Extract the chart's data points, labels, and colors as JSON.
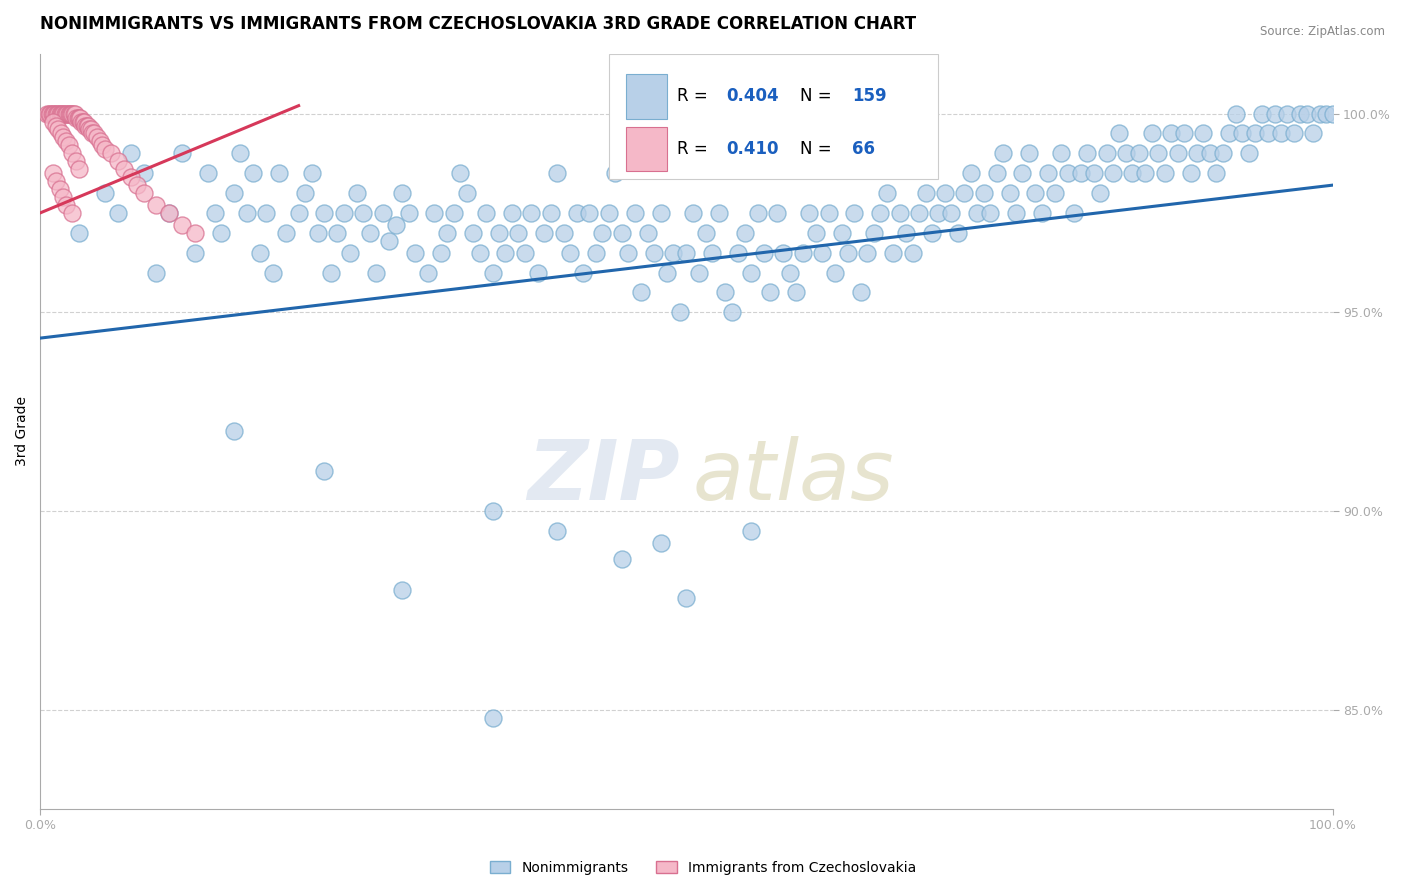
{
  "title": "NONIMMIGRANTS VS IMMIGRANTS FROM CZECHOSLOVAKIA 3RD GRADE CORRELATION CHART",
  "source": "Source: ZipAtlas.com",
  "ylabel": "3rd Grade",
  "xlabel": "",
  "xlim": [
    0.0,
    1.0
  ],
  "ylim": [
    0.825,
    1.015
  ],
  "yticks": [
    0.85,
    0.9,
    0.95,
    1.0
  ],
  "ytick_labels": [
    "85.0%",
    "90.0%",
    "95.0%",
    "100.0%"
  ],
  "R_nonimm": 0.404,
  "N_nonimm": 159,
  "R_imm": 0.41,
  "N_imm": 66,
  "scatter_blue_color": "#b8d0e8",
  "scatter_blue_edge": "#7aaed0",
  "scatter_pink_color": "#f5b8c8",
  "scatter_pink_edge": "#d87090",
  "line_blue_color": "#2166ac",
  "line_pink_color": "#d6385a",
  "legend_label_blue": "Nonimmigrants",
  "legend_label_pink": "Immigrants from Czechoslovakia",
  "title_fontsize": 12,
  "axis_label_fontsize": 10,
  "tick_fontsize": 9,
  "blue_line_x0": 0.0,
  "blue_line_y0": 0.9435,
  "blue_line_x1": 1.0,
  "blue_line_y1": 0.982,
  "pink_line_x0": 0.0,
  "pink_line_y0": 0.975,
  "pink_line_x1": 0.2,
  "pink_line_y1": 1.002,
  "blue_dots": [
    [
      0.03,
      0.97
    ],
    [
      0.05,
      0.98
    ],
    [
      0.06,
      0.975
    ],
    [
      0.07,
      0.99
    ],
    [
      0.08,
      0.985
    ],
    [
      0.09,
      0.96
    ],
    [
      0.1,
      0.975
    ],
    [
      0.11,
      0.99
    ],
    [
      0.12,
      0.965
    ],
    [
      0.13,
      0.985
    ],
    [
      0.135,
      0.975
    ],
    [
      0.14,
      0.97
    ],
    [
      0.15,
      0.98
    ],
    [
      0.155,
      0.99
    ],
    [
      0.16,
      0.975
    ],
    [
      0.165,
      0.985
    ],
    [
      0.17,
      0.965
    ],
    [
      0.175,
      0.975
    ],
    [
      0.18,
      0.96
    ],
    [
      0.185,
      0.985
    ],
    [
      0.19,
      0.97
    ],
    [
      0.2,
      0.975
    ],
    [
      0.205,
      0.98
    ],
    [
      0.21,
      0.985
    ],
    [
      0.215,
      0.97
    ],
    [
      0.22,
      0.975
    ],
    [
      0.225,
      0.96
    ],
    [
      0.23,
      0.97
    ],
    [
      0.235,
      0.975
    ],
    [
      0.24,
      0.965
    ],
    [
      0.245,
      0.98
    ],
    [
      0.25,
      0.975
    ],
    [
      0.255,
      0.97
    ],
    [
      0.26,
      0.96
    ],
    [
      0.265,
      0.975
    ],
    [
      0.27,
      0.968
    ],
    [
      0.275,
      0.972
    ],
    [
      0.28,
      0.98
    ],
    [
      0.285,
      0.975
    ],
    [
      0.29,
      0.965
    ],
    [
      0.3,
      0.96
    ],
    [
      0.305,
      0.975
    ],
    [
      0.31,
      0.965
    ],
    [
      0.315,
      0.97
    ],
    [
      0.32,
      0.975
    ],
    [
      0.325,
      0.985
    ],
    [
      0.33,
      0.98
    ],
    [
      0.335,
      0.97
    ],
    [
      0.34,
      0.965
    ],
    [
      0.345,
      0.975
    ],
    [
      0.35,
      0.96
    ],
    [
      0.355,
      0.97
    ],
    [
      0.36,
      0.965
    ],
    [
      0.365,
      0.975
    ],
    [
      0.37,
      0.97
    ],
    [
      0.375,
      0.965
    ],
    [
      0.38,
      0.975
    ],
    [
      0.385,
      0.96
    ],
    [
      0.39,
      0.97
    ],
    [
      0.395,
      0.975
    ],
    [
      0.4,
      0.985
    ],
    [
      0.405,
      0.97
    ],
    [
      0.41,
      0.965
    ],
    [
      0.415,
      0.975
    ],
    [
      0.42,
      0.96
    ],
    [
      0.425,
      0.975
    ],
    [
      0.43,
      0.965
    ],
    [
      0.435,
      0.97
    ],
    [
      0.44,
      0.975
    ],
    [
      0.445,
      0.985
    ],
    [
      0.45,
      0.97
    ],
    [
      0.455,
      0.965
    ],
    [
      0.46,
      0.975
    ],
    [
      0.465,
      0.955
    ],
    [
      0.47,
      0.97
    ],
    [
      0.475,
      0.965
    ],
    [
      0.48,
      0.975
    ],
    [
      0.485,
      0.96
    ],
    [
      0.49,
      0.965
    ],
    [
      0.495,
      0.95
    ],
    [
      0.5,
      0.965
    ],
    [
      0.505,
      0.975
    ],
    [
      0.51,
      0.96
    ],
    [
      0.515,
      0.97
    ],
    [
      0.52,
      0.965
    ],
    [
      0.525,
      0.975
    ],
    [
      0.53,
      0.955
    ],
    [
      0.535,
      0.95
    ],
    [
      0.54,
      0.965
    ],
    [
      0.545,
      0.97
    ],
    [
      0.55,
      0.96
    ],
    [
      0.555,
      0.975
    ],
    [
      0.56,
      0.965
    ],
    [
      0.565,
      0.955
    ],
    [
      0.57,
      0.975
    ],
    [
      0.575,
      0.965
    ],
    [
      0.58,
      0.96
    ],
    [
      0.585,
      0.955
    ],
    [
      0.59,
      0.965
    ],
    [
      0.595,
      0.975
    ],
    [
      0.6,
      0.97
    ],
    [
      0.605,
      0.965
    ],
    [
      0.61,
      0.975
    ],
    [
      0.615,
      0.96
    ],
    [
      0.62,
      0.97
    ],
    [
      0.625,
      0.965
    ],
    [
      0.63,
      0.975
    ],
    [
      0.635,
      0.955
    ],
    [
      0.64,
      0.965
    ],
    [
      0.645,
      0.97
    ],
    [
      0.65,
      0.975
    ],
    [
      0.655,
      0.98
    ],
    [
      0.66,
      0.965
    ],
    [
      0.665,
      0.975
    ],
    [
      0.67,
      0.97
    ],
    [
      0.675,
      0.965
    ],
    [
      0.68,
      0.975
    ],
    [
      0.685,
      0.98
    ],
    [
      0.69,
      0.97
    ],
    [
      0.695,
      0.975
    ],
    [
      0.7,
      0.98
    ],
    [
      0.705,
      0.975
    ],
    [
      0.71,
      0.97
    ],
    [
      0.715,
      0.98
    ],
    [
      0.72,
      0.985
    ],
    [
      0.725,
      0.975
    ],
    [
      0.73,
      0.98
    ],
    [
      0.735,
      0.975
    ],
    [
      0.74,
      0.985
    ],
    [
      0.745,
      0.99
    ],
    [
      0.75,
      0.98
    ],
    [
      0.755,
      0.975
    ],
    [
      0.76,
      0.985
    ],
    [
      0.765,
      0.99
    ],
    [
      0.77,
      0.98
    ],
    [
      0.775,
      0.975
    ],
    [
      0.78,
      0.985
    ],
    [
      0.785,
      0.98
    ],
    [
      0.79,
      0.99
    ],
    [
      0.795,
      0.985
    ],
    [
      0.8,
      0.975
    ],
    [
      0.805,
      0.985
    ],
    [
      0.81,
      0.99
    ],
    [
      0.815,
      0.985
    ],
    [
      0.82,
      0.98
    ],
    [
      0.825,
      0.99
    ],
    [
      0.83,
      0.985
    ],
    [
      0.835,
      0.995
    ],
    [
      0.84,
      0.99
    ],
    [
      0.845,
      0.985
    ],
    [
      0.85,
      0.99
    ],
    [
      0.855,
      0.985
    ],
    [
      0.86,
      0.995
    ],
    [
      0.865,
      0.99
    ],
    [
      0.87,
      0.985
    ],
    [
      0.875,
      0.995
    ],
    [
      0.88,
      0.99
    ],
    [
      0.885,
      0.995
    ],
    [
      0.89,
      0.985
    ],
    [
      0.895,
      0.99
    ],
    [
      0.9,
      0.995
    ],
    [
      0.905,
      0.99
    ],
    [
      0.91,
      0.985
    ],
    [
      0.915,
      0.99
    ],
    [
      0.92,
      0.995
    ],
    [
      0.925,
      1.0
    ],
    [
      0.93,
      0.995
    ],
    [
      0.935,
      0.99
    ],
    [
      0.94,
      0.995
    ],
    [
      0.945,
      1.0
    ],
    [
      0.95,
      0.995
    ],
    [
      0.955,
      1.0
    ],
    [
      0.96,
      0.995
    ],
    [
      0.965,
      1.0
    ],
    [
      0.97,
      0.995
    ],
    [
      0.975,
      1.0
    ],
    [
      0.98,
      1.0
    ],
    [
      0.985,
      0.995
    ],
    [
      0.99,
      1.0
    ],
    [
      0.995,
      1.0
    ],
    [
      1.0,
      1.0
    ],
    [
      0.15,
      0.92
    ],
    [
      0.22,
      0.91
    ],
    [
      0.28,
      0.88
    ],
    [
      0.35,
      0.9
    ],
    [
      0.4,
      0.895
    ],
    [
      0.45,
      0.888
    ],
    [
      0.48,
      0.892
    ],
    [
      0.5,
      0.878
    ],
    [
      0.55,
      0.895
    ],
    [
      0.35,
      0.848
    ]
  ],
  "pink_dots": [
    [
      0.005,
      1.0
    ],
    [
      0.007,
      1.0
    ],
    [
      0.008,
      1.0
    ],
    [
      0.009,
      1.0
    ],
    [
      0.01,
      1.0
    ],
    [
      0.011,
      1.0
    ],
    [
      0.012,
      1.0
    ],
    [
      0.013,
      1.0
    ],
    [
      0.014,
      1.0
    ],
    [
      0.015,
      1.0
    ],
    [
      0.016,
      1.0
    ],
    [
      0.017,
      1.0
    ],
    [
      0.018,
      1.0
    ],
    [
      0.019,
      1.0
    ],
    [
      0.02,
      1.0
    ],
    [
      0.021,
      1.0
    ],
    [
      0.022,
      1.0
    ],
    [
      0.023,
      1.0
    ],
    [
      0.024,
      1.0
    ],
    [
      0.025,
      1.0
    ],
    [
      0.026,
      1.0
    ],
    [
      0.027,
      1.0
    ],
    [
      0.028,
      0.999
    ],
    [
      0.029,
      0.999
    ],
    [
      0.03,
      0.999
    ],
    [
      0.031,
      0.999
    ],
    [
      0.032,
      0.998
    ],
    [
      0.033,
      0.998
    ],
    [
      0.034,
      0.998
    ],
    [
      0.035,
      0.997
    ],
    [
      0.036,
      0.997
    ],
    [
      0.037,
      0.997
    ],
    [
      0.038,
      0.996
    ],
    [
      0.039,
      0.996
    ],
    [
      0.04,
      0.995
    ],
    [
      0.042,
      0.995
    ],
    [
      0.044,
      0.994
    ],
    [
      0.046,
      0.993
    ],
    [
      0.048,
      0.992
    ],
    [
      0.05,
      0.991
    ],
    [
      0.055,
      0.99
    ],
    [
      0.06,
      0.988
    ],
    [
      0.065,
      0.986
    ],
    [
      0.07,
      0.984
    ],
    [
      0.075,
      0.982
    ],
    [
      0.08,
      0.98
    ],
    [
      0.09,
      0.977
    ],
    [
      0.1,
      0.975
    ],
    [
      0.11,
      0.972
    ],
    [
      0.12,
      0.97
    ],
    [
      0.01,
      0.998
    ],
    [
      0.012,
      0.997
    ],
    [
      0.014,
      0.996
    ],
    [
      0.016,
      0.995
    ],
    [
      0.018,
      0.994
    ],
    [
      0.02,
      0.993
    ],
    [
      0.022,
      0.992
    ],
    [
      0.025,
      0.99
    ],
    [
      0.028,
      0.988
    ],
    [
      0.03,
      0.986
    ],
    [
      0.01,
      0.985
    ],
    [
      0.012,
      0.983
    ],
    [
      0.015,
      0.981
    ],
    [
      0.018,
      0.979
    ],
    [
      0.02,
      0.977
    ],
    [
      0.025,
      0.975
    ]
  ]
}
